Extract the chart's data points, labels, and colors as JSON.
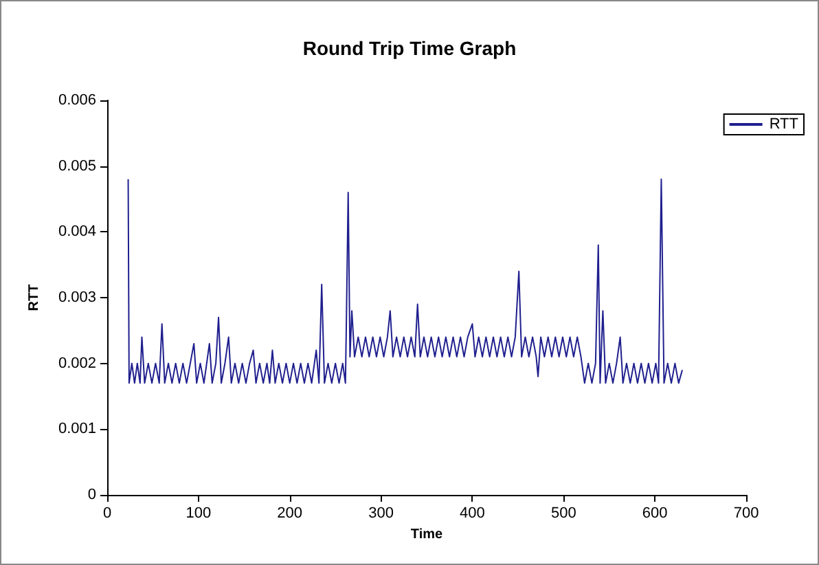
{
  "chart_data": {
    "type": "line",
    "title": "Round Trip Time Graph",
    "xlabel": "Time",
    "ylabel": "RTT",
    "legend": "top right",
    "grid": false,
    "marker": "none",
    "line_style": "solid",
    "xlim": [
      0,
      700
    ],
    "xticks": [
      0,
      100,
      200,
      300,
      400,
      500,
      600,
      700
    ],
    "ylim": [
      0,
      0.006
    ],
    "yticks": [
      0,
      0.001,
      0.002,
      0.003,
      0.004,
      0.005,
      0.006
    ],
    "series": [
      {
        "name": "RTT",
        "color": "#1f1f8f",
        "x": [
          23,
          24,
          27,
          30,
          33,
          36,
          38,
          41,
          45,
          49,
          53,
          57,
          60,
          63,
          67,
          71,
          75,
          79,
          83,
          87,
          91,
          95,
          98,
          102,
          106,
          109,
          112,
          115,
          119,
          122,
          125,
          129,
          133,
          136,
          140,
          144,
          148,
          152,
          156,
          160,
          163,
          167,
          171,
          175,
          178,
          181,
          184,
          188,
          192,
          196,
          200,
          204,
          208,
          212,
          216,
          220,
          224,
          229,
          232,
          235,
          238,
          242,
          246,
          250,
          254,
          258,
          261,
          262,
          264,
          266,
          268,
          271,
          275,
          279,
          283,
          287,
          291,
          295,
          299,
          303,
          307,
          310,
          313,
          317,
          321,
          325,
          329,
          333,
          337,
          340,
          343,
          347,
          351,
          355,
          359,
          363,
          367,
          371,
          375,
          379,
          383,
          387,
          391,
          395,
          400,
          403,
          407,
          411,
          415,
          419,
          423,
          427,
          431,
          435,
          439,
          443,
          447,
          451,
          454,
          458,
          462,
          466,
          470,
          472,
          475,
          479,
          483,
          487,
          491,
          495,
          499,
          503,
          507,
          511,
          515,
          519,
          523,
          527,
          531,
          535,
          538,
          540,
          543,
          546,
          550,
          554,
          558,
          562,
          565,
          569,
          573,
          577,
          581,
          585,
          589,
          593,
          597,
          601,
          604,
          607,
          610,
          614,
          618,
          622,
          626,
          630
        ],
        "values": [
          0.0048,
          0.0017,
          0.002,
          0.0017,
          0.002,
          0.0017,
          0.0024,
          0.0017,
          0.002,
          0.0017,
          0.002,
          0.0017,
          0.0026,
          0.0017,
          0.002,
          0.0017,
          0.002,
          0.0017,
          0.002,
          0.0017,
          0.002,
          0.0023,
          0.0017,
          0.002,
          0.0017,
          0.002,
          0.0023,
          0.0017,
          0.002,
          0.0027,
          0.0017,
          0.002,
          0.0024,
          0.0017,
          0.002,
          0.0017,
          0.002,
          0.0017,
          0.002,
          0.0022,
          0.0017,
          0.002,
          0.0017,
          0.002,
          0.0017,
          0.0022,
          0.0017,
          0.002,
          0.0017,
          0.002,
          0.0017,
          0.002,
          0.0017,
          0.002,
          0.0017,
          0.002,
          0.0017,
          0.0022,
          0.0017,
          0.0032,
          0.0017,
          0.002,
          0.0017,
          0.002,
          0.0017,
          0.002,
          0.0017,
          0.0026,
          0.0046,
          0.0021,
          0.0028,
          0.0021,
          0.0024,
          0.0021,
          0.0024,
          0.0021,
          0.0024,
          0.0021,
          0.0024,
          0.0021,
          0.0024,
          0.0028,
          0.0021,
          0.0024,
          0.0021,
          0.0024,
          0.0021,
          0.0024,
          0.0021,
          0.0029,
          0.0021,
          0.0024,
          0.0021,
          0.0024,
          0.0021,
          0.0024,
          0.0021,
          0.0024,
          0.0021,
          0.0024,
          0.0021,
          0.0024,
          0.0021,
          0.0024,
          0.0026,
          0.0021,
          0.0024,
          0.0021,
          0.0024,
          0.0021,
          0.0024,
          0.0021,
          0.0024,
          0.0021,
          0.0024,
          0.0021,
          0.0024,
          0.0034,
          0.0021,
          0.0024,
          0.0021,
          0.0024,
          0.0021,
          0.0018,
          0.0024,
          0.0021,
          0.0024,
          0.0021,
          0.0024,
          0.0021,
          0.0024,
          0.0021,
          0.0024,
          0.0021,
          0.0024,
          0.0021,
          0.0017,
          0.002,
          0.0017,
          0.002,
          0.0038,
          0.0017,
          0.0028,
          0.0017,
          0.002,
          0.0017,
          0.002,
          0.0024,
          0.0017,
          0.002,
          0.0017,
          0.002,
          0.0017,
          0.002,
          0.0017,
          0.002,
          0.0017,
          0.002,
          0.0017,
          0.0048,
          0.0017,
          0.002,
          0.0017,
          0.002,
          0.0017,
          0.0019
        ]
      }
    ]
  }
}
